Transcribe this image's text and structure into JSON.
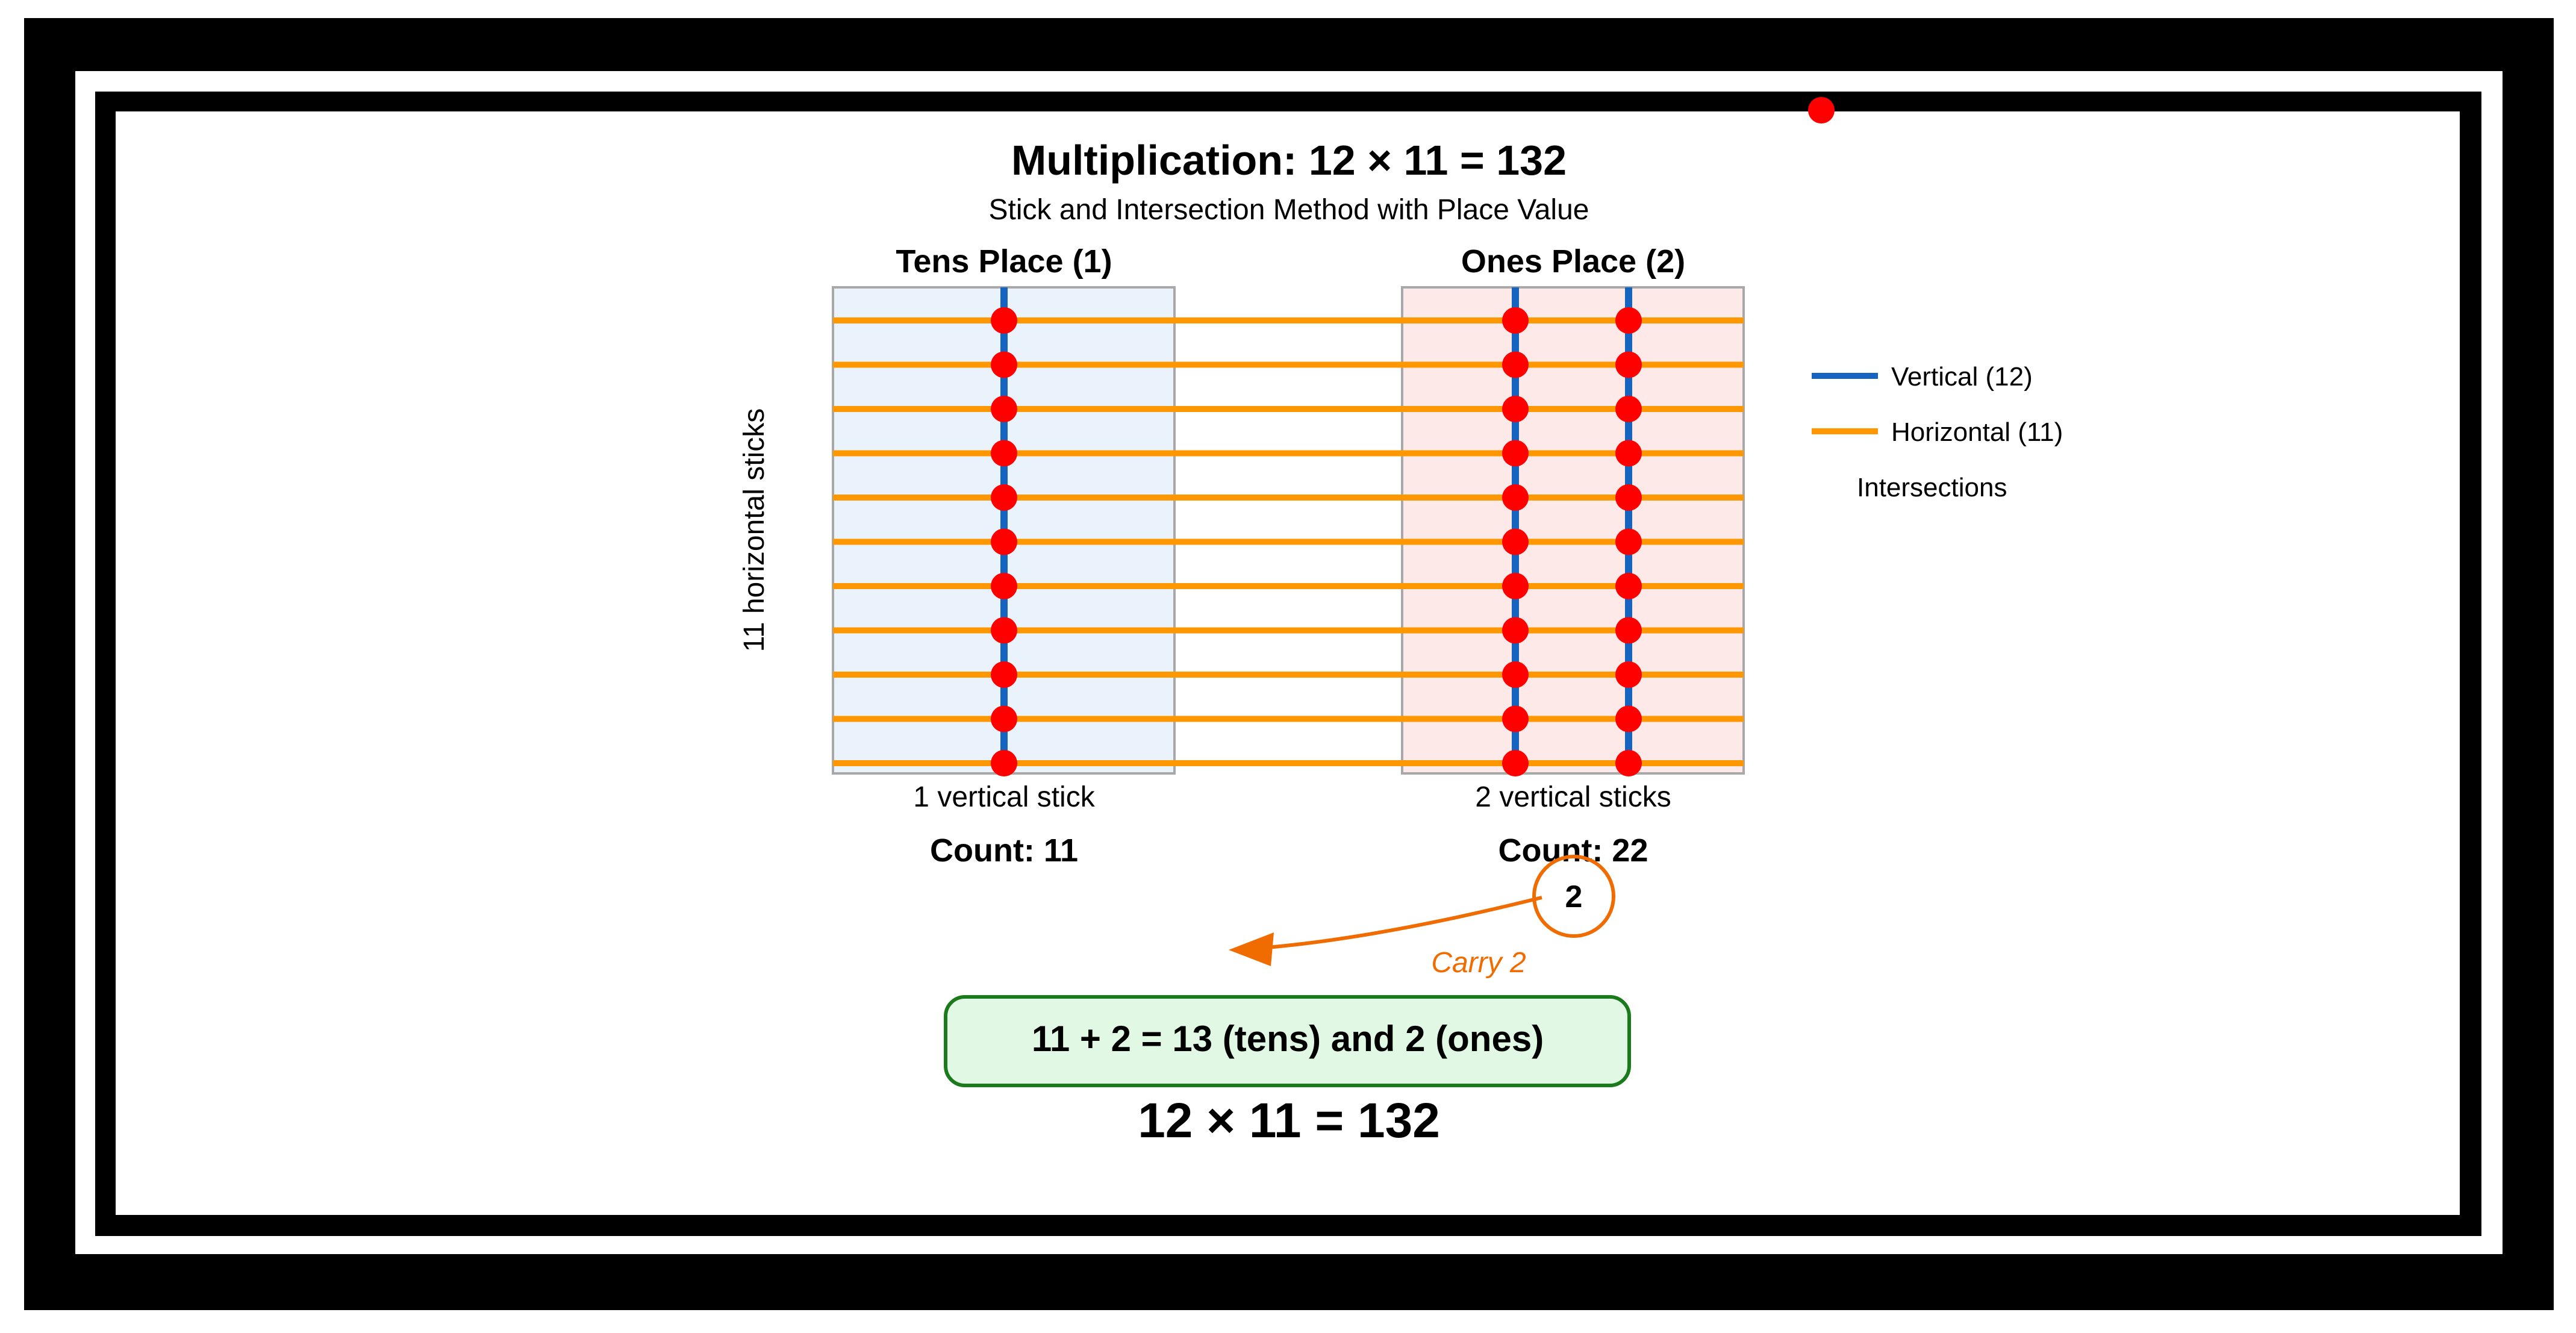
{
  "title": "Multiplication: 12 × 11 = 132",
  "subtitle": "Stick and Intersection Method with Place Value",
  "y_axis_label": "11 horizontal sticks",
  "tens": {
    "header": "Tens Place (1)",
    "caption": "1 vertical stick",
    "count": "Count: 11",
    "vertical_sticks": 1
  },
  "ones": {
    "header": "Ones Place (2)",
    "caption": "2 vertical sticks",
    "count": "Count: 22",
    "vertical_sticks": 2
  },
  "horizontal_sticks": 11,
  "legend": {
    "vertical": "Vertical (12)",
    "horizontal": "Horizontal (11)",
    "intersections": "Intersections"
  },
  "carry": {
    "digit": "2",
    "label": "Carry 2"
  },
  "result_box": "11 + 2 = 13 (tens) and 2 (ones)",
  "final_equation": "12 × 11 = 132",
  "colors": {
    "frame": "#000000",
    "vertical_stick": "#1565c0",
    "horizontal_stick": "#ff9800",
    "intersection": "#ff0000",
    "tens_fill": "#eaf3fb",
    "ones_fill": "#fde9e7",
    "carry": "#f06c00",
    "result_fill": "#e0f8e4",
    "result_border": "#1b7a1b"
  }
}
